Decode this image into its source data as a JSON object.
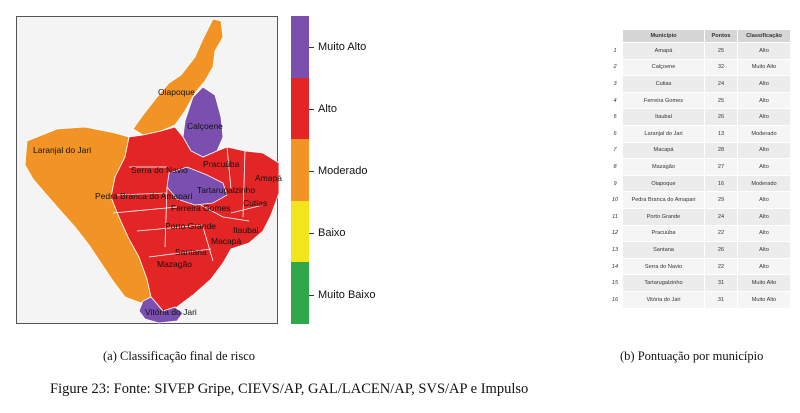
{
  "colors": {
    "muito_alto": "#7b4fb0",
    "alto": "#e32526",
    "moderado": "#f29325",
    "baixo": "#f2e51b",
    "muito_baixo": "#2ea84a"
  },
  "map": {
    "labels": [
      "Oiapoque",
      "Calçoene",
      "Laranjal do Jari",
      "Pracuúba",
      "Amapá",
      "Serra do Navio",
      "Tartarugalzinho",
      "Pedra Branca do Amapari",
      "Ferreira Gomes",
      "Cutias",
      "Porto Grande",
      "Itaubal",
      "Macapá",
      "Santana",
      "Mazagão",
      "Vitória do Jari"
    ]
  },
  "legend": {
    "items": [
      "Muito Alto",
      "Alto",
      "Moderado",
      "Baixo",
      "Muito Baixo"
    ]
  },
  "table": {
    "headers": [
      "",
      "Município",
      "Pontos",
      "Classificação"
    ],
    "rows": [
      [
        "1",
        "Amapá",
        "25",
        "Alto"
      ],
      [
        "2",
        "Calçoene",
        "32",
        "Muito Alto"
      ],
      [
        "3",
        "Cutias",
        "24",
        "Alto"
      ],
      [
        "4",
        "Ferreira Gomes",
        "25",
        "Alto"
      ],
      [
        "5",
        "Itaubal",
        "26",
        "Alto"
      ],
      [
        "6",
        "Laranjal do Jari",
        "13",
        "Moderado"
      ],
      [
        "7",
        "Macapá",
        "28",
        "Alto"
      ],
      [
        "8",
        "Mazagão",
        "27",
        "Alto"
      ],
      [
        "9",
        "Oiapoque",
        "16",
        "Moderado"
      ],
      [
        "10",
        "Pedra Branca do Amapari",
        "29",
        "Alto"
      ],
      [
        "11",
        "Porto Grande",
        "24",
        "Alto"
      ],
      [
        "12",
        "Pracuúba",
        "22",
        "Alto"
      ],
      [
        "13",
        "Santana",
        "26",
        "Alto"
      ],
      [
        "14",
        "Serra do Navio",
        "22",
        "Alto"
      ],
      [
        "15",
        "Tartarugalzinho",
        "31",
        "Muito Alto"
      ],
      [
        "16",
        "Vitória do Jari",
        "31",
        "Muito Alto"
      ]
    ]
  },
  "captions": {
    "a": "(a) Classificação final de risco",
    "b": "(b) Pontuação por município",
    "figure": "Figure 23: Fonte: SIVEP Gripe, CIEVS/AP, GAL/LACEN/AP, SVS/AP e Impulso"
  }
}
